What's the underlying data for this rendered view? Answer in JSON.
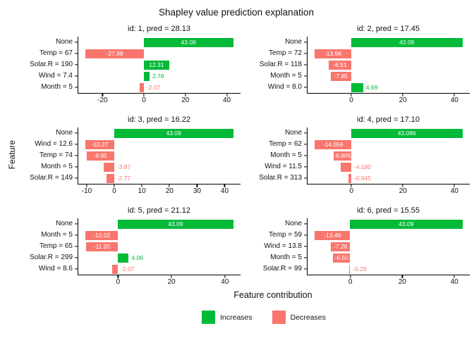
{
  "title": "Shapley value prediction explanation",
  "xlabel": "Feature contribution",
  "ylabel": "Feature",
  "colors": {
    "increase": "#00BA38",
    "decrease": "#F8766D",
    "inside_text": "#FFFFFF"
  },
  "legend": [
    {
      "label": "Increases",
      "color": "#00BA38"
    },
    {
      "label": "Decreases",
      "color": "#F8766D"
    }
  ],
  "chart_data": {
    "type": "bar",
    "orientation": "horizontal",
    "grid": false,
    "legend_position": "bottom",
    "facets": [
      {
        "title": "id: 1, pred = 28.13",
        "domain": [
          -31.53,
          46.64
        ],
        "ticks": [
          -20,
          0,
          20,
          40
        ],
        "bars": [
          {
            "label": "None",
            "value": 43.09,
            "display": "43.09",
            "inside": true
          },
          {
            "label": "Temp = 67",
            "value": -27.98,
            "display": "-27.98",
            "inside": true
          },
          {
            "label": "Solar.R = 190",
            "value": 12.31,
            "display": "12.31",
            "inside": true
          },
          {
            "label": "Wind = 7.4",
            "value": 2.78,
            "display": "2.78",
            "inside": false
          },
          {
            "label": "Month = 5",
            "value": -2.07,
            "display": "-2.07",
            "inside": false
          }
        ]
      },
      {
        "title": "id: 2, pred = 17.45",
        "domain": [
          -16.81,
          45.94
        ],
        "ticks": [
          0,
          20,
          40
        ],
        "bars": [
          {
            "label": "None",
            "value": 43.09,
            "display": "43.09",
            "inside": true
          },
          {
            "label": "Temp = 72",
            "value": -13.96,
            "display": "-13.96",
            "inside": true
          },
          {
            "label": "Solar.R = 118",
            "value": -8.51,
            "display": "-8.51",
            "inside": true
          },
          {
            "label": "Month = 5",
            "value": -7.85,
            "display": "-7.85",
            "inside": true
          },
          {
            "label": "Wind = 8.0",
            "value": 4.69,
            "display": "4.69",
            "inside": false
          }
        ]
      },
      {
        "title": "id: 3, pred = 16.22",
        "domain": [
          -12.94,
          45.76
        ],
        "ticks": [
          -10,
          0,
          10,
          20,
          30,
          40
        ],
        "bars": [
          {
            "label": "None",
            "value": 43.09,
            "display": "43.09",
            "inside": true
          },
          {
            "label": "Wind = 12.6",
            "value": -10.27,
            "display": "-10.27",
            "inside": true
          },
          {
            "label": "Temp = 74",
            "value": -9.95,
            "display": "-9.95",
            "inside": true
          },
          {
            "label": "Month = 5",
            "value": -3.87,
            "display": "-3.87",
            "inside": false
          },
          {
            "label": "Solar.R = 149",
            "value": -2.77,
            "display": "-2.77",
            "inside": false
          }
        ]
      },
      {
        "title": "id: 4, pred = 17.10",
        "domain": [
          -16.91,
          45.94
        ],
        "ticks": [
          0,
          20,
          40
        ],
        "bars": [
          {
            "label": "None",
            "value": 43.086,
            "display": "43.086",
            "inside": true
          },
          {
            "label": "Temp = 62",
            "value": -14.056,
            "display": "-14.056",
            "inside": true
          },
          {
            "label": "Month = 5",
            "value": -6.805,
            "display": "-6.805",
            "inside": true
          },
          {
            "label": "Wind = 11.5",
            "value": -4.18,
            "display": "-4.180",
            "inside": false
          },
          {
            "label": "Solar.R = 313",
            "value": -0.945,
            "display": "-0.945",
            "inside": false
          }
        ]
      },
      {
        "title": "id: 5, pred = 21.12",
        "domain": [
          -14.78,
          45.85
        ],
        "ticks": [
          0,
          20,
          40
        ],
        "bars": [
          {
            "label": "None",
            "value": 43.09,
            "display": "43.09",
            "inside": true
          },
          {
            "label": "Month = 5",
            "value": -12.02,
            "display": "-12.02",
            "inside": true
          },
          {
            "label": "Temp = 65",
            "value": -11.95,
            "display": "-11.95",
            "inside": true
          },
          {
            "label": "Solar.R = 299",
            "value": 4.06,
            "display": "4.06",
            "inside": false
          },
          {
            "label": "Wind = 8.6",
            "value": -2.07,
            "display": "-2.07",
            "inside": false
          }
        ]
      },
      {
        "title": "id: 6, pred = 15.55",
        "domain": [
          -16.29,
          45.92
        ],
        "ticks": [
          0,
          20,
          40
        ],
        "bars": [
          {
            "label": "None",
            "value": 43.09,
            "display": "43.09",
            "inside": true
          },
          {
            "label": "Temp = 59",
            "value": -13.46,
            "display": "-13.46",
            "inside": true
          },
          {
            "label": "Wind = 13.8",
            "value": -7.28,
            "display": "-7.28",
            "inside": true
          },
          {
            "label": "Month = 5",
            "value": -6.5,
            "display": "-6.50",
            "inside": true
          },
          {
            "label": "Solar.R = 99",
            "value": -0.29,
            "display": "-0.29",
            "inside": false
          }
        ]
      }
    ]
  }
}
